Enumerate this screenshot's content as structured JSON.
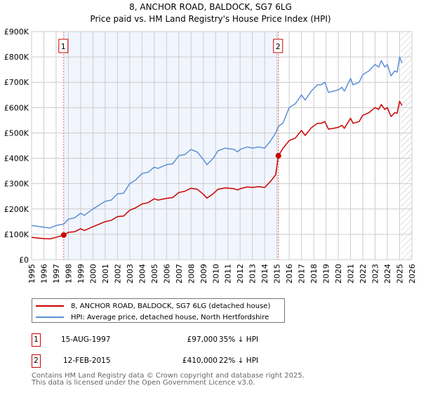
{
  "chart_data": {
    "type": "line",
    "title": "8, ANCHOR ROAD, BALDOCK, SG7 6LG",
    "subtitle": "Price paid vs. HM Land Registry's House Price Index (HPI)",
    "xlim": [
      1995,
      2026
    ],
    "ylim": [
      0,
      900000
    ],
    "y_ticks": [
      {
        "v": 0,
        "label": "£0"
      },
      {
        "v": 100000,
        "label": "£100K"
      },
      {
        "v": 200000,
        "label": "£200K"
      },
      {
        "v": 300000,
        "label": "£300K"
      },
      {
        "v": 400000,
        "label": "£400K"
      },
      {
        "v": 500000,
        "label": "£500K"
      },
      {
        "v": 600000,
        "label": "£600K"
      },
      {
        "v": 700000,
        "label": "£700K"
      },
      {
        "v": 800000,
        "label": "£800K"
      },
      {
        "v": 900000,
        "label": "£900K"
      }
    ],
    "x_ticks": [
      "1995",
      "1996",
      "1997",
      "1998",
      "1999",
      "2000",
      "2001",
      "2002",
      "2003",
      "2004",
      "2005",
      "2006",
      "2007",
      "2008",
      "2009",
      "2010",
      "2011",
      "2012",
      "2013",
      "2014",
      "2015",
      "2016",
      "2017",
      "2018",
      "2019",
      "2020",
      "2021",
      "2022",
      "2023",
      "2024",
      "2025",
      "2026"
    ],
    "x": [
      1995.0,
      1996.0,
      1996.5,
      1997.0,
      1997.62,
      1998.0,
      1998.5,
      1999.0,
      1999.3,
      2000.0,
      2000.5,
      2001.0,
      2001.5,
      2002.0,
      2002.5,
      2003.0,
      2003.5,
      2004.0,
      2004.5,
      2005.0,
      2005.3,
      2006.0,
      2006.5,
      2007.0,
      2007.5,
      2008.0,
      2008.5,
      2009.0,
      2009.3,
      2009.8,
      2010.2,
      2010.8,
      2011.5,
      2011.8,
      2012.0,
      2012.6,
      2013.0,
      2013.5,
      2014.0,
      2014.5,
      2014.9,
      2015.12,
      2015.5,
      2016.0,
      2016.5,
      2017.0,
      2017.3,
      2017.8,
      2018.3,
      2018.6,
      2018.9,
      2019.2,
      2019.6,
      2020.0,
      2020.3,
      2020.5,
      2021.0,
      2021.2,
      2021.7,
      2022.0,
      2022.5,
      2023.0,
      2023.3,
      2023.5,
      2023.8,
      2024.0,
      2024.3,
      2024.6,
      2024.8,
      2025.0,
      2025.2
    ],
    "series": [
      {
        "name": "8, ANCHOR ROAD, BALDOCK, SG7 6LG (detached house)",
        "color": "#cc0000",
        "values": [
          88,
          83,
          82,
          88,
          97,
          108,
          110,
          122,
          115,
          130,
          140,
          150,
          155,
          170,
          172,
          195,
          205,
          220,
          225,
          240,
          235,
          242,
          245,
          265,
          270,
          282,
          278,
          258,
          243,
          260,
          278,
          283,
          280,
          275,
          280,
          287,
          285,
          288,
          285,
          310,
          335,
          410,
          440,
          470,
          480,
          510,
          490,
          520,
          538,
          538,
          545,
          515,
          518,
          522,
          530,
          518,
          558,
          538,
          545,
          570,
          580,
          600,
          593,
          612,
          593,
          600,
          565,
          580,
          578,
          625,
          608
        ]
      },
      {
        "name": "HPI: Average price, detached house, North Hertfordshire",
        "color": "#5b8fd6",
        "values": [
          135,
          128,
          125,
          135,
          140,
          160,
          165,
          183,
          175,
          200,
          215,
          230,
          235,
          260,
          262,
          300,
          315,
          340,
          345,
          365,
          360,
          375,
          378,
          410,
          415,
          435,
          425,
          395,
          375,
          400,
          430,
          440,
          435,
          425,
          435,
          445,
          440,
          445,
          440,
          470,
          500,
          525,
          540,
          600,
          615,
          650,
          630,
          665,
          690,
          690,
          700,
          660,
          665,
          670,
          680,
          665,
          715,
          690,
          700,
          730,
          745,
          770,
          760,
          785,
          760,
          770,
          725,
          745,
          740,
          800,
          775
        ]
      }
    ],
    "value_unit": "thousands GBP",
    "sales": [
      {
        "id": "1",
        "x": 1997.62,
        "value": 97,
        "date": "15-AUG-1997",
        "price": "£97,000",
        "delta": "35% ↓ HPI"
      },
      {
        "id": "2",
        "x": 2015.12,
        "value": 410,
        "date": "12-FEB-2015",
        "price": "£410,000",
        "delta": "22% ↓ HPI"
      }
    ],
    "shaded_range": [
      1997.62,
      2015.12
    ],
    "forecast_hatch_from": 2025.1,
    "legend_placement": "bottom"
  },
  "footer": {
    "line1": "Contains HM Land Registry data © Crown copyright and database right 2025.",
    "line2": "This data is licensed under the Open Government Licence v3.0."
  }
}
